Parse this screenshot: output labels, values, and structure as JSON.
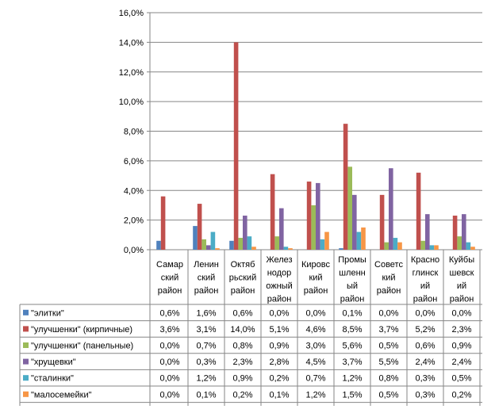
{
  "chart_data": {
    "type": "bar",
    "title": "",
    "xlabel": "",
    "ylabel": "",
    "ylim": [
      0,
      16
    ],
    "y_ticks": [
      "0,0%",
      "2,0%",
      "4,0%",
      "6,0%",
      "8,0%",
      "10,0%",
      "12,0%",
      "14,0%",
      "16,0%"
    ],
    "grid": "horizontal",
    "legend": "data table rows",
    "categories": [
      [
        "Самар",
        "ский",
        "район"
      ],
      [
        "Ленин",
        "ский",
        "район"
      ],
      [
        "Октяб",
        "рьский",
        "район"
      ],
      [
        "Желез",
        "нодор",
        "ожный",
        "район"
      ],
      [
        "Кировс",
        "кий",
        "район"
      ],
      [
        "Промы",
        "шленн",
        "ый",
        "район"
      ],
      [
        "Советс",
        "кий",
        "район"
      ],
      [
        "Красно",
        "глинск",
        "ий",
        "район"
      ],
      [
        "Куйбы",
        "шевск",
        "ий",
        "район"
      ]
    ],
    "series": [
      {
        "name": "\"элитки\"",
        "color": "#4f81bd",
        "values": [
          0.6,
          1.6,
          0.6,
          0.0,
          0.0,
          0.1,
          0.0,
          0.0,
          0.0
        ],
        "labels": [
          "0,6%",
          "1,6%",
          "0,6%",
          "0,0%",
          "0,0%",
          "0,1%",
          "0,0%",
          "0,0%",
          "0,0%"
        ]
      },
      {
        "name": "\"улучшенки\"  (кирпичные)",
        "color": "#c0504d",
        "values": [
          3.6,
          3.1,
          14.0,
          5.1,
          4.6,
          8.5,
          3.7,
          5.2,
          2.3
        ],
        "labels": [
          "3,6%",
          "3,1%",
          "14,0%",
          "5,1%",
          "4,6%",
          "8,5%",
          "3,7%",
          "5,2%",
          "2,3%"
        ]
      },
      {
        "name": "\"улучшенки\"  (панельные)",
        "color": "#9bbb59",
        "values": [
          0.0,
          0.7,
          0.8,
          0.9,
          3.0,
          5.6,
          0.5,
          0.6,
          0.9
        ],
        "labels": [
          "0,0%",
          "0,7%",
          "0,8%",
          "0,9%",
          "3,0%",
          "5,6%",
          "0,5%",
          "0,6%",
          "0,9%"
        ]
      },
      {
        "name": "\"хрущевки\"",
        "color": "#8064a2",
        "values": [
          0.0,
          0.3,
          2.3,
          2.8,
          4.5,
          3.7,
          5.5,
          2.4,
          2.4
        ],
        "labels": [
          "0,0%",
          "0,3%",
          "2,3%",
          "2,8%",
          "4,5%",
          "3,7%",
          "5,5%",
          "2,4%",
          "2,4%"
        ]
      },
      {
        "name": "\"сталинки\"",
        "color": "#4bacc6",
        "values": [
          0.0,
          1.2,
          0.9,
          0.2,
          0.7,
          1.2,
          0.8,
          0.3,
          0.5
        ],
        "labels": [
          "0,0%",
          "1,2%",
          "0,9%",
          "0,2%",
          "0,7%",
          "1,2%",
          "0,8%",
          "0,3%",
          "0,5%"
        ]
      },
      {
        "name": "\"малосемейки\"",
        "color": "#f79646",
        "values": [
          0.0,
          0.1,
          0.2,
          0.1,
          1.2,
          1.5,
          0.5,
          0.3,
          0.2
        ],
        "labels": [
          "0,0%",
          "0,1%",
          "0,2%",
          "0,1%",
          "1,2%",
          "1,5%",
          "0,5%",
          "0,3%",
          "0,2%"
        ]
      }
    ]
  }
}
